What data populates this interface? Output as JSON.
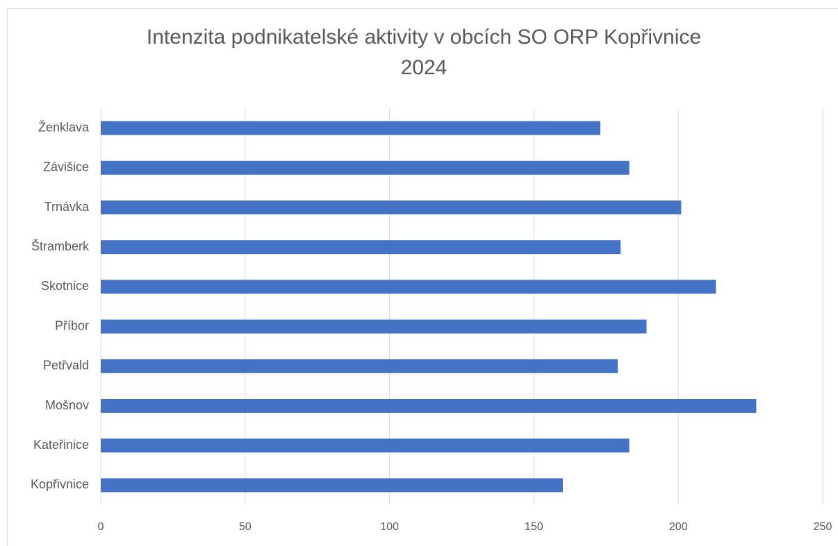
{
  "chart_data": {
    "type": "bar",
    "orientation": "horizontal",
    "title": [
      "Intenzita podnikatelské aktivity  v obcích SO ORP Kopřivnice",
      "2024"
    ],
    "categories": [
      "Kopřivnice",
      "Kateřinice",
      "Mošnov",
      "Petřvald",
      "Příbor",
      "Skotnice",
      "Štramberk",
      "Trnávka",
      "Závišice",
      "Ženklava"
    ],
    "values": [
      160,
      183,
      227,
      179,
      189,
      213,
      180,
      201,
      183,
      173
    ],
    "color": "#4472c4",
    "xlim": [
      0,
      250
    ],
    "xticks": [
      0,
      50,
      100,
      150,
      200,
      250
    ],
    "grid": true
  }
}
